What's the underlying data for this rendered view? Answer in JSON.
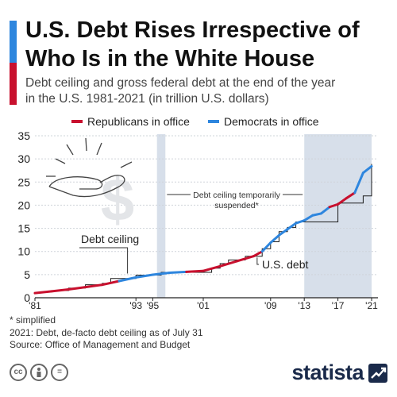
{
  "header": {
    "title_line1": "U.S. Debt Rises Irrespective of",
    "title_line2": "Who Is in the White House",
    "subtitle_line1": "Debt ceiling and gross federal debt at the end of the year",
    "subtitle_line2": "in the U.S. 1981-2021 (in trillion U.S. dollars)"
  },
  "legend": {
    "republicans": "Republicans in office",
    "democrats": "Democrats in office"
  },
  "colors": {
    "republican": "#c8102e",
    "democrat": "#2e86de",
    "debt_ceiling": "#1a1a1a",
    "shade": "#d7dfea"
  },
  "chart_data": {
    "type": "line",
    "ylim": [
      0,
      35
    ],
    "xlim": [
      1981,
      2021
    ],
    "y_ticks": [
      0,
      5,
      10,
      15,
      20,
      25,
      30,
      35
    ],
    "x_ticks": [
      {
        "year": 1981,
        "label": "'81"
      },
      {
        "year": 1993,
        "label": "'93"
      },
      {
        "year": 1995,
        "label": "'95"
      },
      {
        "year": 2001,
        "label": "'01"
      },
      {
        "year": 2009,
        "label": "'09"
      },
      {
        "year": 2013,
        "label": "'13"
      },
      {
        "year": 2017,
        "label": "'17"
      },
      {
        "year": 2021,
        "label": "'21"
      }
    ],
    "shaded_periods": [
      [
        1995.5,
        1996.5
      ],
      [
        2013.0,
        2021.0
      ]
    ],
    "annotations": {
      "debt_ceiling_label": "Debt ceiling",
      "us_debt_label": "U.S. debt",
      "suspended_line1": "Debt ceiling temporarily",
      "suspended_line2": "suspended*"
    },
    "series": [
      {
        "name": "U.S. debt",
        "points": [
          [
            1981,
            1.0,
            "R"
          ],
          [
            1983,
            1.4,
            "R"
          ],
          [
            1985,
            1.8,
            "R"
          ],
          [
            1987,
            2.3,
            "R"
          ],
          [
            1989,
            2.8,
            "R"
          ],
          [
            1991,
            3.6,
            "R"
          ],
          [
            1993,
            4.4,
            "D"
          ],
          [
            1995,
            4.97,
            "D"
          ],
          [
            1997,
            5.4,
            "D"
          ],
          [
            1999,
            5.6,
            "D"
          ],
          [
            2001,
            5.8,
            "R"
          ],
          [
            2003,
            6.8,
            "R"
          ],
          [
            2005,
            7.9,
            "R"
          ],
          [
            2007,
            9.0,
            "R"
          ],
          [
            2008,
            10.0,
            "R"
          ],
          [
            2009,
            11.9,
            "D"
          ],
          [
            2010,
            13.5,
            "D"
          ],
          [
            2011,
            14.8,
            "D"
          ],
          [
            2012,
            16.1,
            "D"
          ],
          [
            2013,
            16.7,
            "D"
          ],
          [
            2014,
            17.8,
            "D"
          ],
          [
            2015,
            18.2,
            "D"
          ],
          [
            2016,
            19.6,
            "D"
          ],
          [
            2017,
            20.2,
            "R"
          ],
          [
            2018,
            21.5,
            "R"
          ],
          [
            2019,
            22.7,
            "R"
          ],
          [
            2020,
            27.0,
            "D"
          ],
          [
            2021,
            28.4,
            "D"
          ]
        ]
      },
      {
        "name": "Debt ceiling",
        "steps": [
          [
            1981,
            1.08
          ],
          [
            1982,
            1.29
          ],
          [
            1983,
            1.49
          ],
          [
            1984,
            1.57
          ],
          [
            1985,
            2.08
          ],
          [
            1986,
            2.11
          ],
          [
            1987,
            2.8
          ],
          [
            1989,
            3.12
          ],
          [
            1990,
            4.15
          ],
          [
            1993,
            4.9
          ],
          [
            1996,
            5.5
          ],
          [
            2002,
            6.4
          ],
          [
            2003,
            7.38
          ],
          [
            2004,
            8.18
          ],
          [
            2006,
            8.97
          ],
          [
            2008,
            10.6
          ],
          [
            2009,
            12.1
          ],
          [
            2010,
            14.29
          ],
          [
            2011,
            15.2
          ],
          [
            2012,
            16.39
          ],
          [
            2017,
            20.46
          ],
          [
            2020,
            22.0
          ],
          [
            2021,
            28.9
          ]
        ]
      }
    ]
  },
  "footnotes": {
    "simplified": "* simplified",
    "note_2021": "2021: Debt, de-facto debt ceiling as of July 31",
    "source": "Source: Office of Management and Budget"
  },
  "branding": {
    "logo": "statista",
    "cc_icons": [
      "cc-icon",
      "by-icon",
      "nd-icon"
    ]
  }
}
